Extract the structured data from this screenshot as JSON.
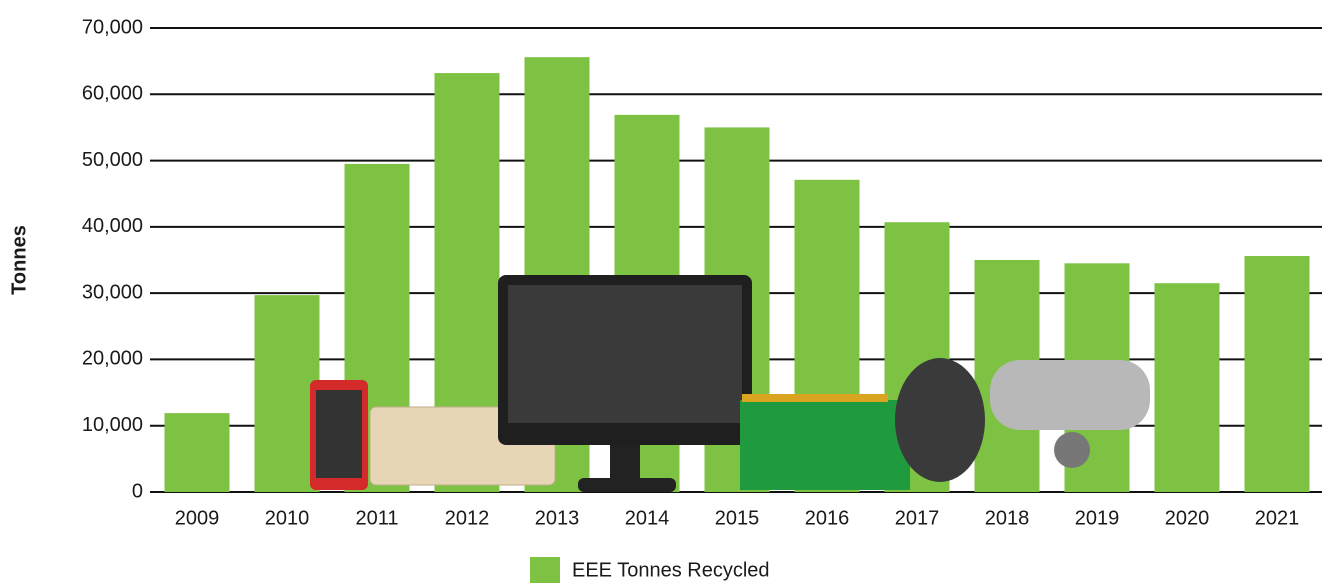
{
  "chart_data": {
    "type": "bar",
    "y_label": "Tonnes",
    "categories": [
      "2009",
      "2010",
      "2011",
      "2012",
      "2013",
      "2014",
      "2015",
      "2016",
      "2017",
      "2018",
      "2019",
      "2020",
      "2021"
    ],
    "series": [
      {
        "name": "EEE Tonnes Recycled",
        "color": "#7dc242",
        "values": [
          11900,
          29700,
          49500,
          63200,
          65600,
          56900,
          55000,
          47100,
          40700,
          35000,
          34500,
          31500,
          35600
        ]
      }
    ],
    "ylim": [
      0,
      70000
    ],
    "yticks": [
      0,
      {
        "value": 10000,
        "label": "10,000"
      },
      {
        "value": 20000,
        "label": "20,000"
      },
      {
        "value": 30000,
        "label": "30,000"
      },
      {
        "value": 40000,
        "label": "40,000"
      },
      {
        "value": 50000,
        "label": "50,000"
      },
      {
        "value": 60000,
        "label": "60,000"
      },
      {
        "value": 70000,
        "label": "70,000"
      }
    ],
    "grid": true
  }
}
